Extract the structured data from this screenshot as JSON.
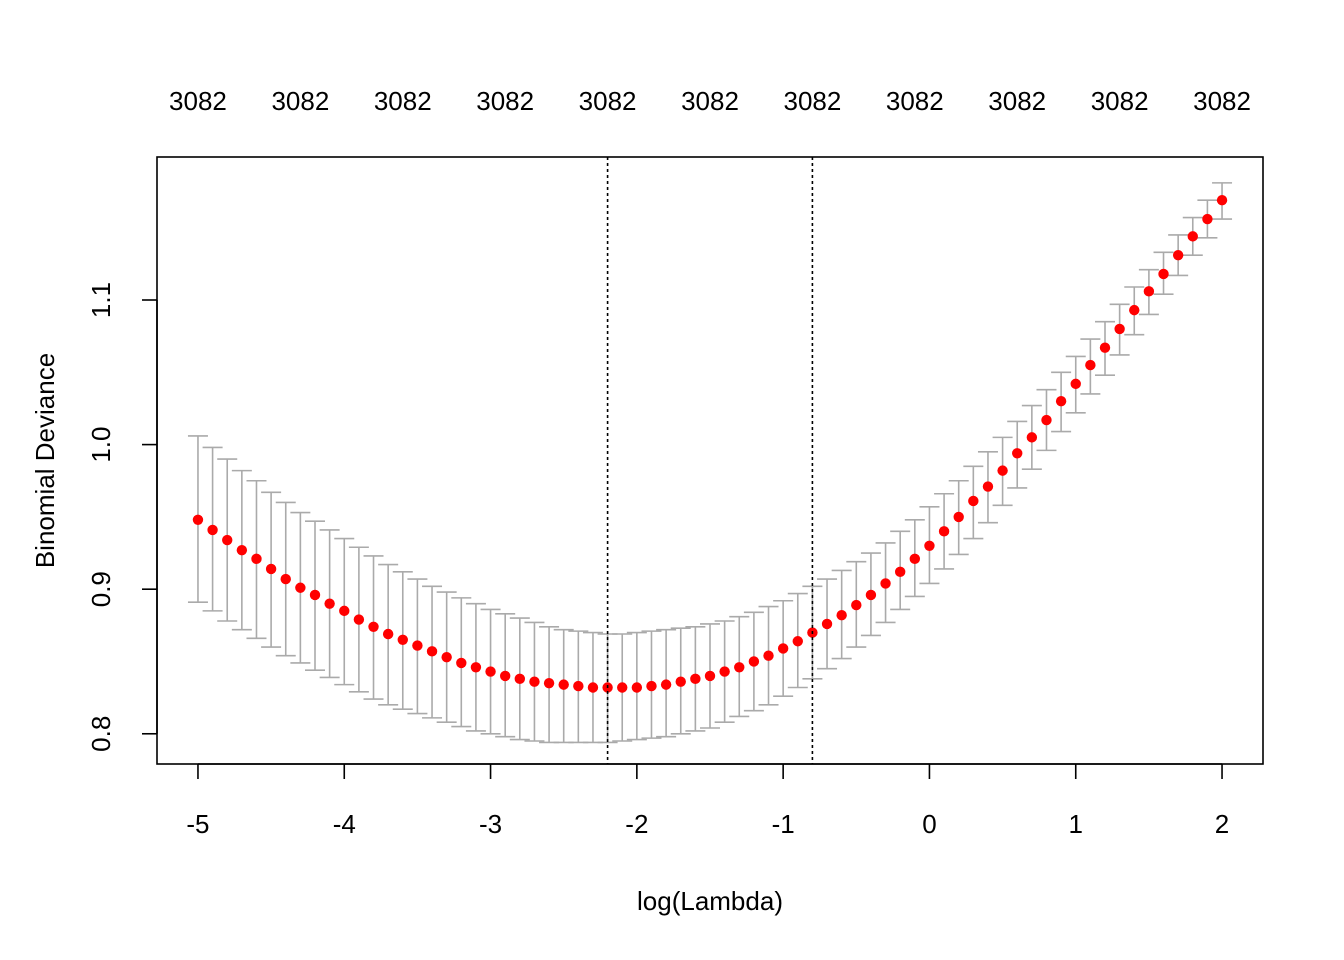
{
  "chart_data": {
    "type": "scatter",
    "title": "",
    "xlabel": "log(Lambda)",
    "ylabel": "Binomial Deviance",
    "xlim": [
      -5.28,
      2.28
    ],
    "ylim": [
      0.7791,
      1.1989
    ],
    "x_ticks": [
      -5,
      -4,
      -3,
      -2,
      -1,
      0,
      1,
      2
    ],
    "x_tick_labels": [
      "-5",
      "-4",
      "-3",
      "-2",
      "-1",
      "0",
      "1",
      "2"
    ],
    "y_ticks": [
      0.8,
      0.9,
      1.0,
      1.1
    ],
    "y_tick_labels": [
      "0.8",
      "0.9",
      "1.0",
      "1.1"
    ],
    "top_axis": {
      "ticks": [
        -5.0,
        -4.3,
        -3.6,
        -2.9,
        -2.2,
        -1.5,
        -0.8,
        -0.1,
        0.6,
        1.3,
        2.0
      ],
      "labels": [
        "3082",
        "3082",
        "3082",
        "3082",
        "3082",
        "3082",
        "3082",
        "3082",
        "3082",
        "3082",
        "3082"
      ]
    },
    "vlines": [
      -2.2,
      -0.8
    ],
    "point_color": "#ff0000",
    "errorbar_color": "#aaaaaa",
    "grid": false,
    "series": [
      {
        "x": [
          -5.0,
          -4.9,
          -4.8,
          -4.7,
          -4.6,
          -4.5,
          -4.4,
          -4.3,
          -4.2,
          -4.1,
          -4.0,
          -3.9,
          -3.8,
          -3.7,
          -3.6,
          -3.5,
          -3.4,
          -3.3,
          -3.2,
          -3.1,
          -3.0,
          -2.9,
          -2.8,
          -2.7,
          -2.6,
          -2.5,
          -2.4,
          -2.3,
          -2.2,
          -2.1,
          -2.0,
          -1.9,
          -1.8,
          -1.7,
          -1.6,
          -1.5,
          -1.4,
          -1.3,
          -1.2,
          -1.1,
          -1.0,
          -0.9,
          -0.8,
          -0.7,
          -0.6,
          -0.5,
          -0.4,
          -0.3,
          -0.2,
          -0.1,
          0.0,
          0.1,
          0.2,
          0.3,
          0.4,
          0.5,
          0.6,
          0.7,
          0.8,
          0.9,
          1.0,
          1.1,
          1.2,
          1.3,
          1.4,
          1.5,
          1.6,
          1.7,
          1.8,
          1.9,
          2.0
        ],
        "y": [
          0.948,
          0.941,
          0.934,
          0.927,
          0.921,
          0.914,
          0.907,
          0.901,
          0.896,
          0.89,
          0.885,
          0.879,
          0.874,
          0.869,
          0.865,
          0.861,
          0.857,
          0.853,
          0.849,
          0.846,
          0.843,
          0.84,
          0.838,
          0.836,
          0.835,
          0.834,
          0.833,
          0.832,
          0.832,
          0.832,
          0.832,
          0.833,
          0.834,
          0.836,
          0.838,
          0.84,
          0.843,
          0.846,
          0.85,
          0.854,
          0.859,
          0.864,
          0.87,
          0.876,
          0.882,
          0.889,
          0.896,
          0.904,
          0.912,
          0.921,
          0.93,
          0.94,
          0.95,
          0.961,
          0.971,
          0.982,
          0.994,
          1.005,
          1.017,
          1.03,
          1.042,
          1.055,
          1.067,
          1.08,
          1.093,
          1.106,
          1.118,
          1.131,
          1.144,
          1.156,
          1.169
        ],
        "upper": [
          1.006,
          0.998,
          0.99,
          0.982,
          0.975,
          0.967,
          0.96,
          0.953,
          0.947,
          0.941,
          0.935,
          0.929,
          0.923,
          0.917,
          0.912,
          0.907,
          0.902,
          0.898,
          0.894,
          0.89,
          0.886,
          0.883,
          0.88,
          0.877,
          0.874,
          0.872,
          0.871,
          0.87,
          0.869,
          0.869,
          0.87,
          0.871,
          0.872,
          0.873,
          0.874,
          0.876,
          0.878,
          0.881,
          0.884,
          0.888,
          0.892,
          0.897,
          0.902,
          0.907,
          0.913,
          0.919,
          0.925,
          0.932,
          0.94,
          0.948,
          0.957,
          0.966,
          0.975,
          0.985,
          0.995,
          1.005,
          1.016,
          1.027,
          1.038,
          1.05,
          1.061,
          1.073,
          1.085,
          1.097,
          1.109,
          1.121,
          1.133,
          1.145,
          1.157,
          1.169,
          1.181
        ],
        "lower": [
          0.891,
          0.885,
          0.878,
          0.872,
          0.866,
          0.86,
          0.854,
          0.849,
          0.844,
          0.839,
          0.834,
          0.829,
          0.824,
          0.82,
          0.817,
          0.814,
          0.811,
          0.808,
          0.805,
          0.802,
          0.8,
          0.798,
          0.796,
          0.795,
          0.794,
          0.794,
          0.794,
          0.794,
          0.794,
          0.795,
          0.796,
          0.797,
          0.798,
          0.8,
          0.802,
          0.804,
          0.808,
          0.812,
          0.816,
          0.82,
          0.826,
          0.832,
          0.838,
          0.845,
          0.852,
          0.86,
          0.868,
          0.877,
          0.886,
          0.895,
          0.904,
          0.914,
          0.924,
          0.935,
          0.946,
          0.958,
          0.97,
          0.983,
          0.996,
          1.009,
          1.022,
          1.035,
          1.048,
          1.062,
          1.076,
          1.09,
          1.104,
          1.117,
          1.131,
          1.143,
          1.156
        ]
      }
    ]
  }
}
